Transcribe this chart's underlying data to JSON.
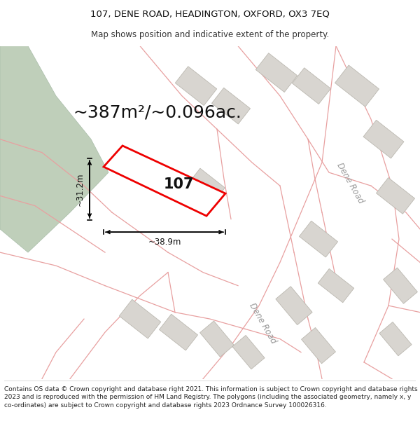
{
  "title_line1": "107, DENE ROAD, HEADINGTON, OXFORD, OX3 7EQ",
  "title_line2": "Map shows position and indicative extent of the property.",
  "area_text": "~387m²/~0.096ac.",
  "label_107": "107",
  "dim_width": "~38.9m",
  "dim_height": "~31.2m",
  "road_label1": "Dene Road",
  "road_label2": "Dene Road",
  "footer_text": "Contains OS data © Crown copyright and database right 2021. This information is subject to Crown copyright and database rights 2023 and is reproduced with the permission of HM Land Registry. The polygons (including the associated geometry, namely x, y co-ordinates) are subject to Crown copyright and database rights 2023 Ordnance Survey 100026316.",
  "map_bg": "#f5f2ef",
  "red_color": "#ee0000",
  "block_fill": "#d8d5d0",
  "block_edge": "#bbb8b0",
  "green_fill": "#bfcfba",
  "green_edge": "#a8bca8",
  "road_color": "#e8a0a0",
  "title_fontsize": 9.5,
  "subtitle_fontsize": 8.5,
  "area_fontsize": 18,
  "label_fontsize": 15,
  "dim_fontsize": 8.5,
  "footer_fontsize": 6.5,
  "road_label_fontsize": 8.5
}
